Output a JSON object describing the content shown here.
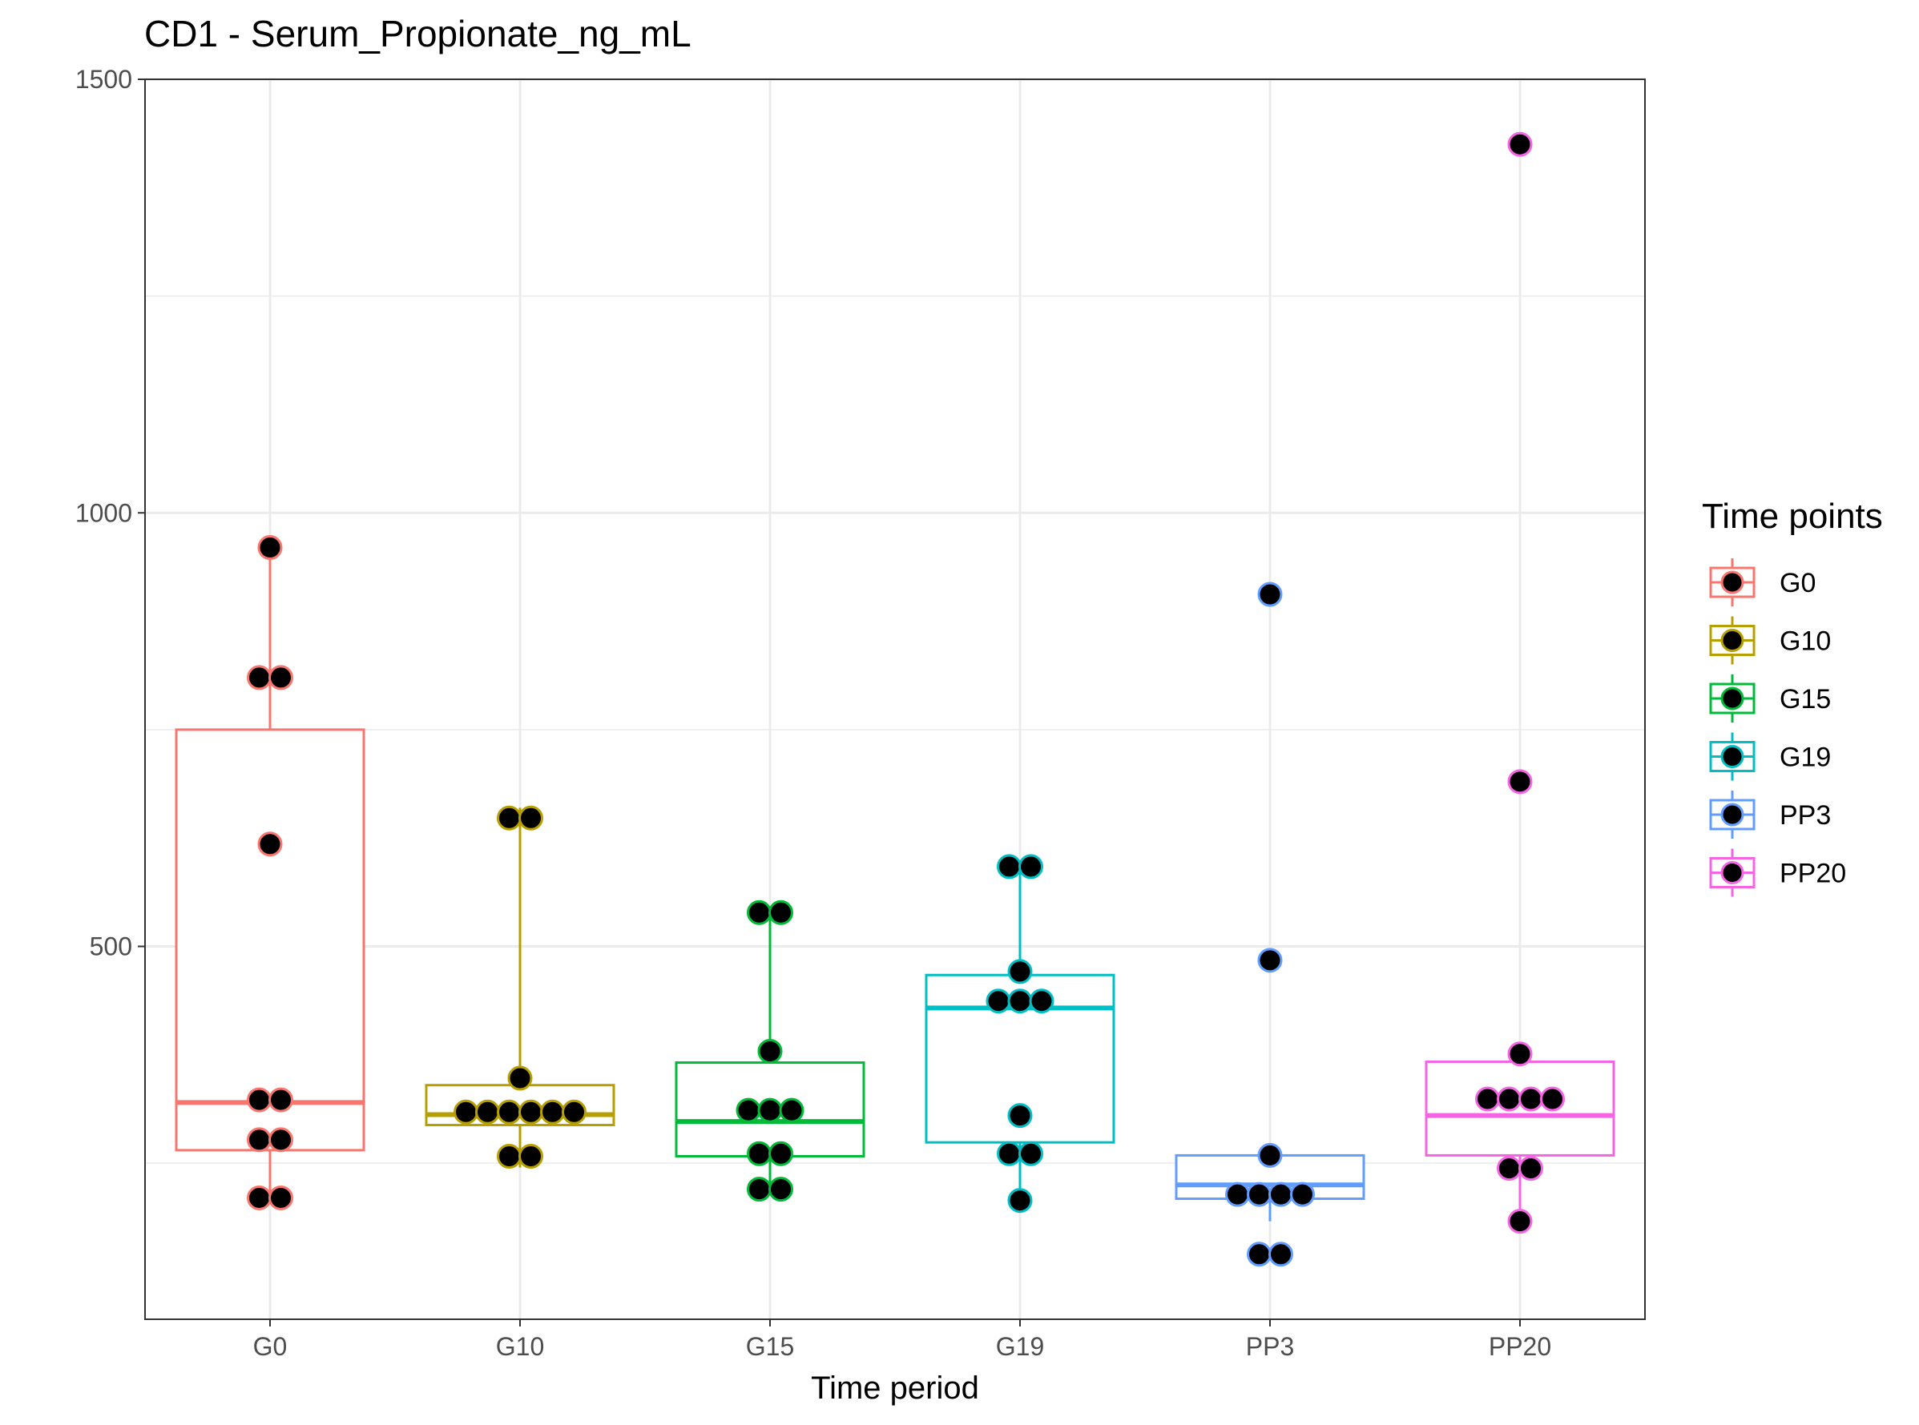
{
  "chart_data": {
    "type": "box",
    "title": "CD1 - Serum_Propionate_ng_mL",
    "xlabel": "Time period",
    "ylabel": "",
    "ylim": [
      70,
      1500
    ],
    "yticks": [
      500,
      1000,
      1500
    ],
    "grid": true,
    "categories": [
      "G0",
      "G10",
      "G15",
      "G19",
      "PP3",
      "PP20"
    ],
    "legend": {
      "title": "Time points",
      "position": "right",
      "entries": [
        "G0",
        "G10",
        "G15",
        "G19",
        "PP3",
        "PP20"
      ]
    },
    "colors": [
      "#F8766D",
      "#B79F00",
      "#00BA38",
      "#00BFC4",
      "#619CFF",
      "#F564E3"
    ],
    "boxes": [
      {
        "name": "G0",
        "whisker_low": 210,
        "q1": 265,
        "median": 320,
        "q3": 750,
        "whisker_high": 960
      },
      {
        "name": "G10",
        "whisker_low": 245,
        "q1": 294,
        "median": 306,
        "q3": 340,
        "whisker_high": 660
      },
      {
        "name": "G15",
        "whisker_low": 225,
        "q1": 258,
        "median": 298,
        "q3": 366,
        "whisker_high": 539
      },
      {
        "name": "G19",
        "whisker_low": 207,
        "q1": 274,
        "median": 429,
        "q3": 467,
        "whisker_high": 592
      },
      {
        "name": "PP3",
        "whisker_low": 183,
        "q1": 209,
        "median": 225,
        "q3": 259,
        "whisker_high": 259
      },
      {
        "name": "PP20",
        "whisker_low": 183,
        "q1": 259,
        "median": 305,
        "q3": 367,
        "whisker_high": 374
      }
    ],
    "points": [
      {
        "group": "G0",
        "values": [
          960,
          810,
          810,
          618,
          323,
          323,
          277,
          277,
          210,
          210
        ]
      },
      {
        "group": "G10",
        "values": [
          648,
          648,
          348,
          309,
          309,
          309,
          309,
          309,
          309,
          258,
          258
        ]
      },
      {
        "group": "G15",
        "values": [
          539,
          539,
          379,
          311,
          311,
          311,
          261,
          261,
          220,
          220
        ]
      },
      {
        "group": "G19",
        "values": [
          592,
          592,
          471,
          437,
          437,
          437,
          305,
          261,
          261,
          207
        ]
      },
      {
        "group": "PP3",
        "values": [
          906,
          484,
          259,
          214,
          214,
          214,
          214,
          145,
          145
        ]
      },
      {
        "group": "PP20",
        "values": [
          1425,
          690,
          376,
          324,
          324,
          324,
          324,
          244,
          244,
          183
        ]
      }
    ]
  }
}
